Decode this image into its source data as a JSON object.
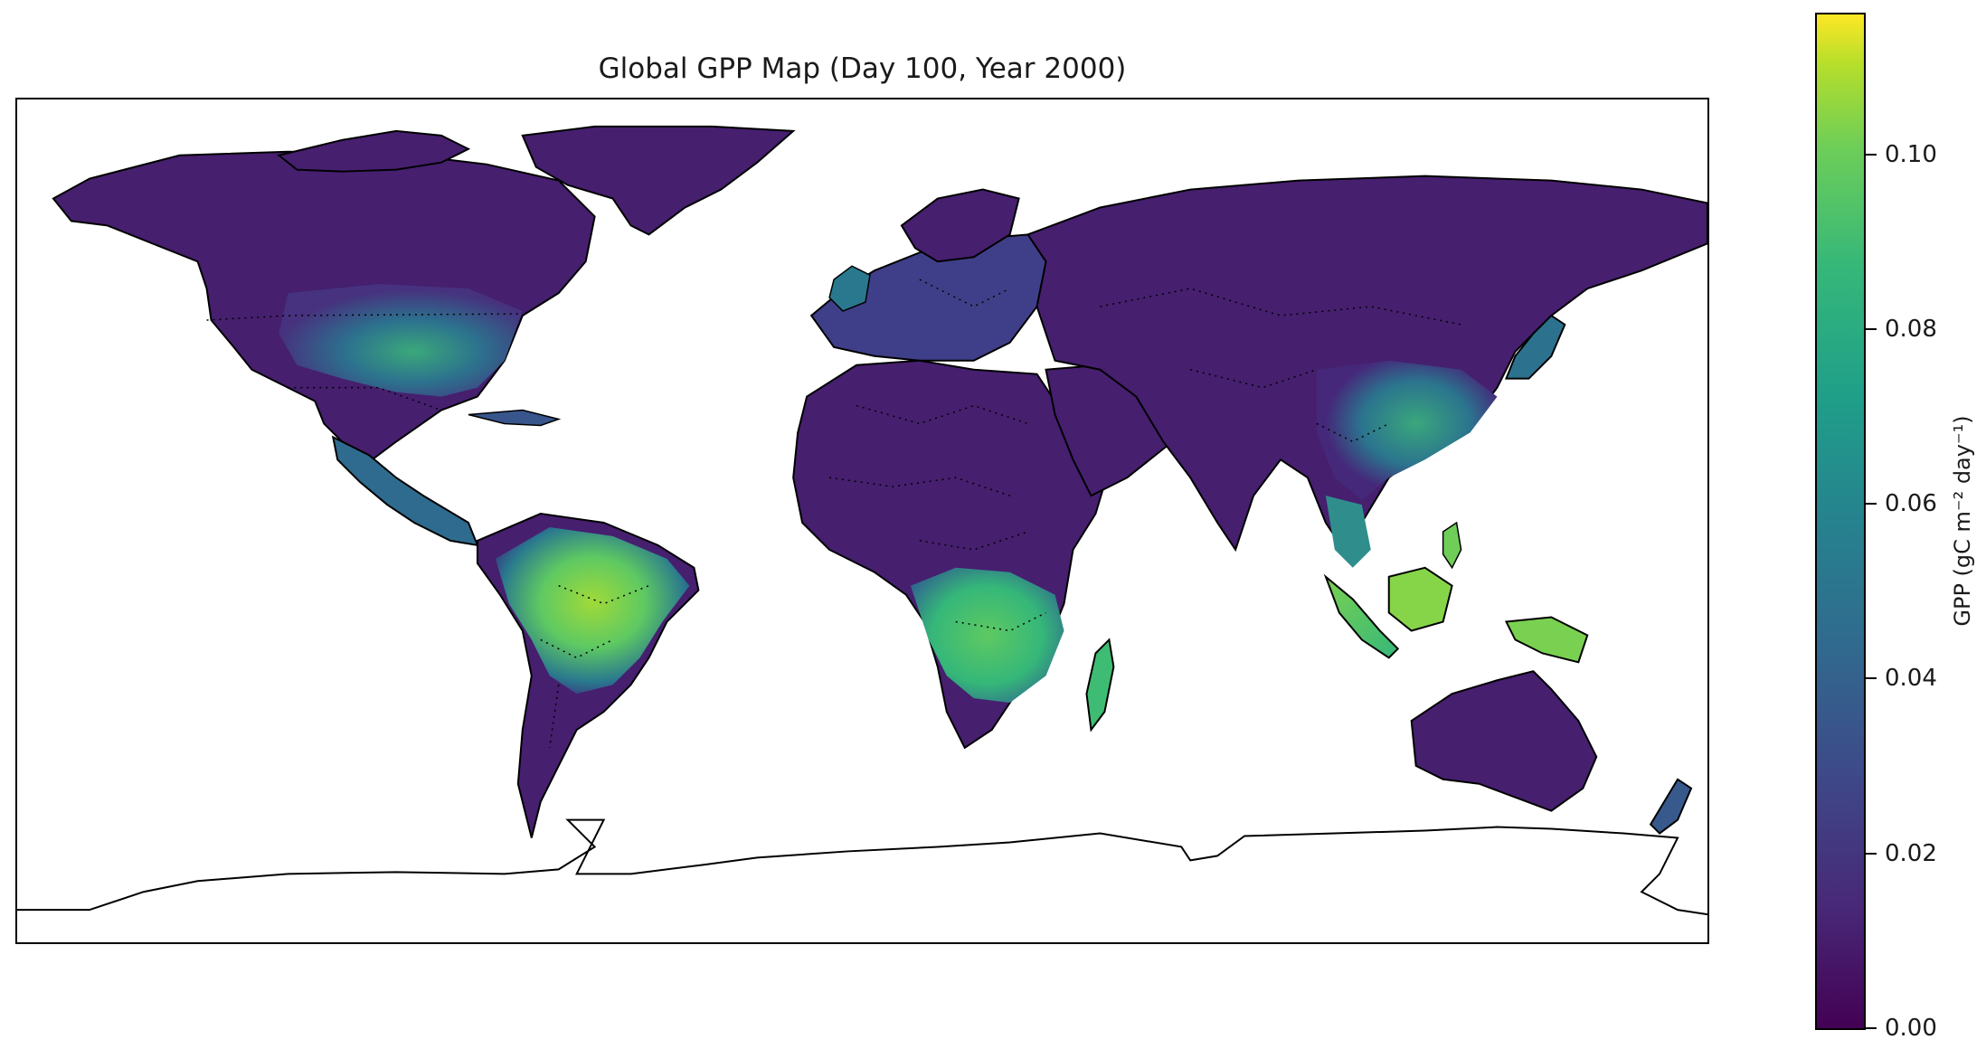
{
  "title": "Global GPP Map (Day 100, Year 2000)",
  "colorbar": {
    "label": "GPP (gC m⁻² day⁻¹)",
    "colormap": "viridis",
    "range": [
      0.0,
      0.116
    ],
    "ticks": [
      {
        "value": 0.0,
        "label": "0.00"
      },
      {
        "value": 0.02,
        "label": "0.02"
      },
      {
        "value": 0.04,
        "label": "0.04"
      },
      {
        "value": 0.06,
        "label": "0.06"
      },
      {
        "value": 0.08,
        "label": "0.08"
      },
      {
        "value": 0.1,
        "label": "0.10"
      }
    ]
  },
  "map": {
    "projection": "equirectangular",
    "features": [
      "coastlines",
      "country-borders-dotted"
    ],
    "background": "#ffffff"
  },
  "colors": {
    "low": "#440154",
    "mid": "#21918c",
    "high": "#fde725"
  }
}
